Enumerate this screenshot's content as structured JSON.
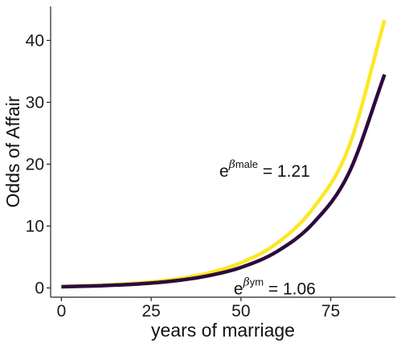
{
  "chart_data": {
    "type": "line",
    "title": "",
    "xlabel": "years of marriage",
    "ylabel": "Odds of Affair",
    "xlim": [
      -3,
      93
    ],
    "ylim": [
      -1.5,
      45.5
    ],
    "x_ticks": [
      0,
      25,
      50,
      75
    ],
    "y_ticks": [
      0,
      10,
      20,
      30,
      40
    ],
    "grid": false,
    "legend": "none",
    "series": [
      {
        "color": "#fde725",
        "x": [
          0,
          10,
          20,
          30,
          40,
          50,
          60,
          70,
          80,
          90
        ],
        "y": [
          0.23,
          0.41,
          0.72,
          1.29,
          2.28,
          4.06,
          7.21,
          12.8,
          22.7,
          43.3
        ]
      },
      {
        "color": "#2d0a3e",
        "x": [
          0,
          10,
          20,
          30,
          40,
          50,
          60,
          70,
          80,
          90
        ],
        "y": [
          0.19,
          0.34,
          0.59,
          1.05,
          1.87,
          3.31,
          5.87,
          10.4,
          18.5,
          34.5
        ]
      }
    ],
    "annotations": [
      {
        "base": "e",
        "superscript_greek": "β",
        "superscript_text": "male",
        "text": " = 1.21",
        "at_x": 44,
        "at_y": 19
      },
      {
        "base": "e",
        "superscript_greek": "β",
        "superscript_text": "ym",
        "text": " = 1.06",
        "at_x": 48,
        "at_y": 0
      }
    ]
  }
}
